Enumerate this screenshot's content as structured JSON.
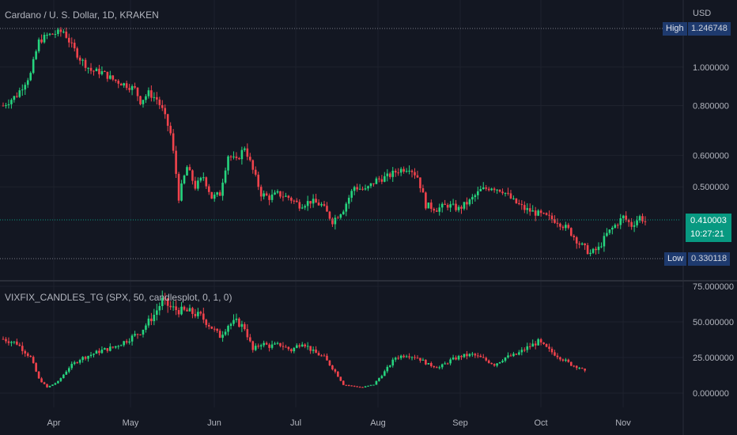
{
  "header": {
    "main_title": "Cardano / U. S. Dollar, 1D, KRAKEN",
    "indicator_title": "VIXFIX_CANDLES_TG (SPX, 50, candlesplot, 0, 1, 0)",
    "currency": "USD"
  },
  "colors": {
    "background": "#131722",
    "up": "#26d47e",
    "down": "#f0434c",
    "grid": "#1e222d",
    "last_price_bg": "#089981",
    "tag_bg": "#1e3a6e"
  },
  "markers": {
    "high_label": "High",
    "high_value": "1.246748",
    "low_label": "Low",
    "low_value": "0.330118",
    "last_price": "0.410003",
    "countdown": "10:27:21"
  },
  "chart_data": [
    {
      "type": "candlestick",
      "title": "Cardano / U. S. Dollar, 1D, KRAKEN",
      "scale": "log",
      "y_ticks": [
        "1.000000",
        "0.800000",
        "0.600000",
        "0.500000"
      ],
      "x_ticks": [
        "Apr",
        "May",
        "Jun",
        "Jul",
        "Aug",
        "Sep",
        "Oct",
        "Nov"
      ],
      "y_range": [
        0.33,
        1.25
      ],
      "close_series": [
        [
          0,
          0.8
        ],
        [
          5,
          0.85
        ],
        [
          10,
          0.96
        ],
        [
          13,
          1.16
        ],
        [
          16,
          1.2
        ],
        [
          20,
          1.22
        ],
        [
          22,
          1.23
        ],
        [
          25,
          1.13
        ],
        [
          28,
          1.05
        ],
        [
          32,
          0.98
        ],
        [
          36,
          0.97
        ],
        [
          40,
          0.93
        ],
        [
          45,
          0.9
        ],
        [
          48,
          0.88
        ],
        [
          50,
          0.82
        ],
        [
          53,
          0.86
        ],
        [
          56,
          0.83
        ],
        [
          58,
          0.78
        ],
        [
          61,
          0.68
        ],
        [
          64,
          0.47
        ],
        [
          67,
          0.56
        ],
        [
          70,
          0.5
        ],
        [
          73,
          0.53
        ],
        [
          76,
          0.47
        ],
        [
          79,
          0.48
        ],
        [
          82,
          0.6
        ],
        [
          85,
          0.58
        ],
        [
          88,
          0.63
        ],
        [
          91,
          0.55
        ],
        [
          94,
          0.48
        ],
        [
          97,
          0.47
        ],
        [
          100,
          0.48
        ],
        [
          104,
          0.47
        ],
        [
          108,
          0.45
        ],
        [
          112,
          0.46
        ],
        [
          116,
          0.45
        ],
        [
          120,
          0.41
        ],
        [
          124,
          0.44
        ],
        [
          128,
          0.5
        ],
        [
          132,
          0.49
        ],
        [
          136,
          0.52
        ],
        [
          140,
          0.53
        ],
        [
          144,
          0.55
        ],
        [
          148,
          0.56
        ],
        [
          151,
          0.53
        ],
        [
          154,
          0.45
        ],
        [
          158,
          0.44
        ],
        [
          162,
          0.45
        ],
        [
          166,
          0.44
        ],
        [
          170,
          0.46
        ],
        [
          174,
          0.49
        ],
        [
          178,
          0.5
        ],
        [
          182,
          0.49
        ],
        [
          186,
          0.46
        ],
        [
          190,
          0.44
        ],
        [
          194,
          0.43
        ],
        [
          198,
          0.42
        ],
        [
          202,
          0.41
        ],
        [
          206,
          0.39
        ],
        [
          210,
          0.36
        ],
        [
          214,
          0.34
        ],
        [
          217,
          0.35
        ],
        [
          220,
          0.38
        ],
        [
          223,
          0.4
        ],
        [
          226,
          0.42
        ],
        [
          229,
          0.4
        ],
        [
          232,
          0.42
        ],
        [
          234,
          0.41
        ]
      ]
    },
    {
      "type": "candlestick",
      "title": "VIXFIX_CANDLES_TG (SPX, 50, candlesplot, 0, 1, 0)",
      "y_ticks": [
        "75.000000",
        "50.000000",
        "25.000000",
        "0.000000"
      ],
      "y_range": [
        0,
        75
      ],
      "close_series": [
        [
          0,
          38
        ],
        [
          5,
          35
        ],
        [
          10,
          25
        ],
        [
          13,
          10
        ],
        [
          16,
          4
        ],
        [
          20,
          8
        ],
        [
          24,
          18
        ],
        [
          28,
          24
        ],
        [
          32,
          27
        ],
        [
          36,
          30
        ],
        [
          40,
          32
        ],
        [
          45,
          37
        ],
        [
          50,
          43
        ],
        [
          55,
          55
        ],
        [
          58,
          65
        ],
        [
          61,
          60
        ],
        [
          64,
          58
        ],
        [
          68,
          57
        ],
        [
          72,
          54
        ],
        [
          76,
          46
        ],
        [
          79,
          40
        ],
        [
          82,
          48
        ],
        [
          85,
          50
        ],
        [
          88,
          46
        ],
        [
          91,
          30
        ],
        [
          94,
          35
        ],
        [
          97,
          33
        ],
        [
          101,
          34
        ],
        [
          105,
          30
        ],
        [
          109,
          36
        ],
        [
          113,
          29
        ],
        [
          117,
          25
        ],
        [
          121,
          15
        ],
        [
          124,
          6
        ],
        [
          127,
          5
        ],
        [
          131,
          4
        ],
        [
          135,
          6
        ],
        [
          139,
          15
        ],
        [
          143,
          25
        ],
        [
          147,
          27
        ],
        [
          151,
          25
        ],
        [
          155,
          20
        ],
        [
          159,
          18
        ],
        [
          163,
          23
        ],
        [
          167,
          26
        ],
        [
          171,
          27
        ],
        [
          175,
          24
        ],
        [
          179,
          20
        ],
        [
          183,
          25
        ],
        [
          187,
          27
        ],
        [
          191,
          32
        ],
        [
          195,
          36
        ],
        [
          199,
          30
        ],
        [
          203,
          25
        ],
        [
          207,
          20
        ],
        [
          210,
          18
        ],
        [
          212,
          15
        ]
      ]
    }
  ]
}
